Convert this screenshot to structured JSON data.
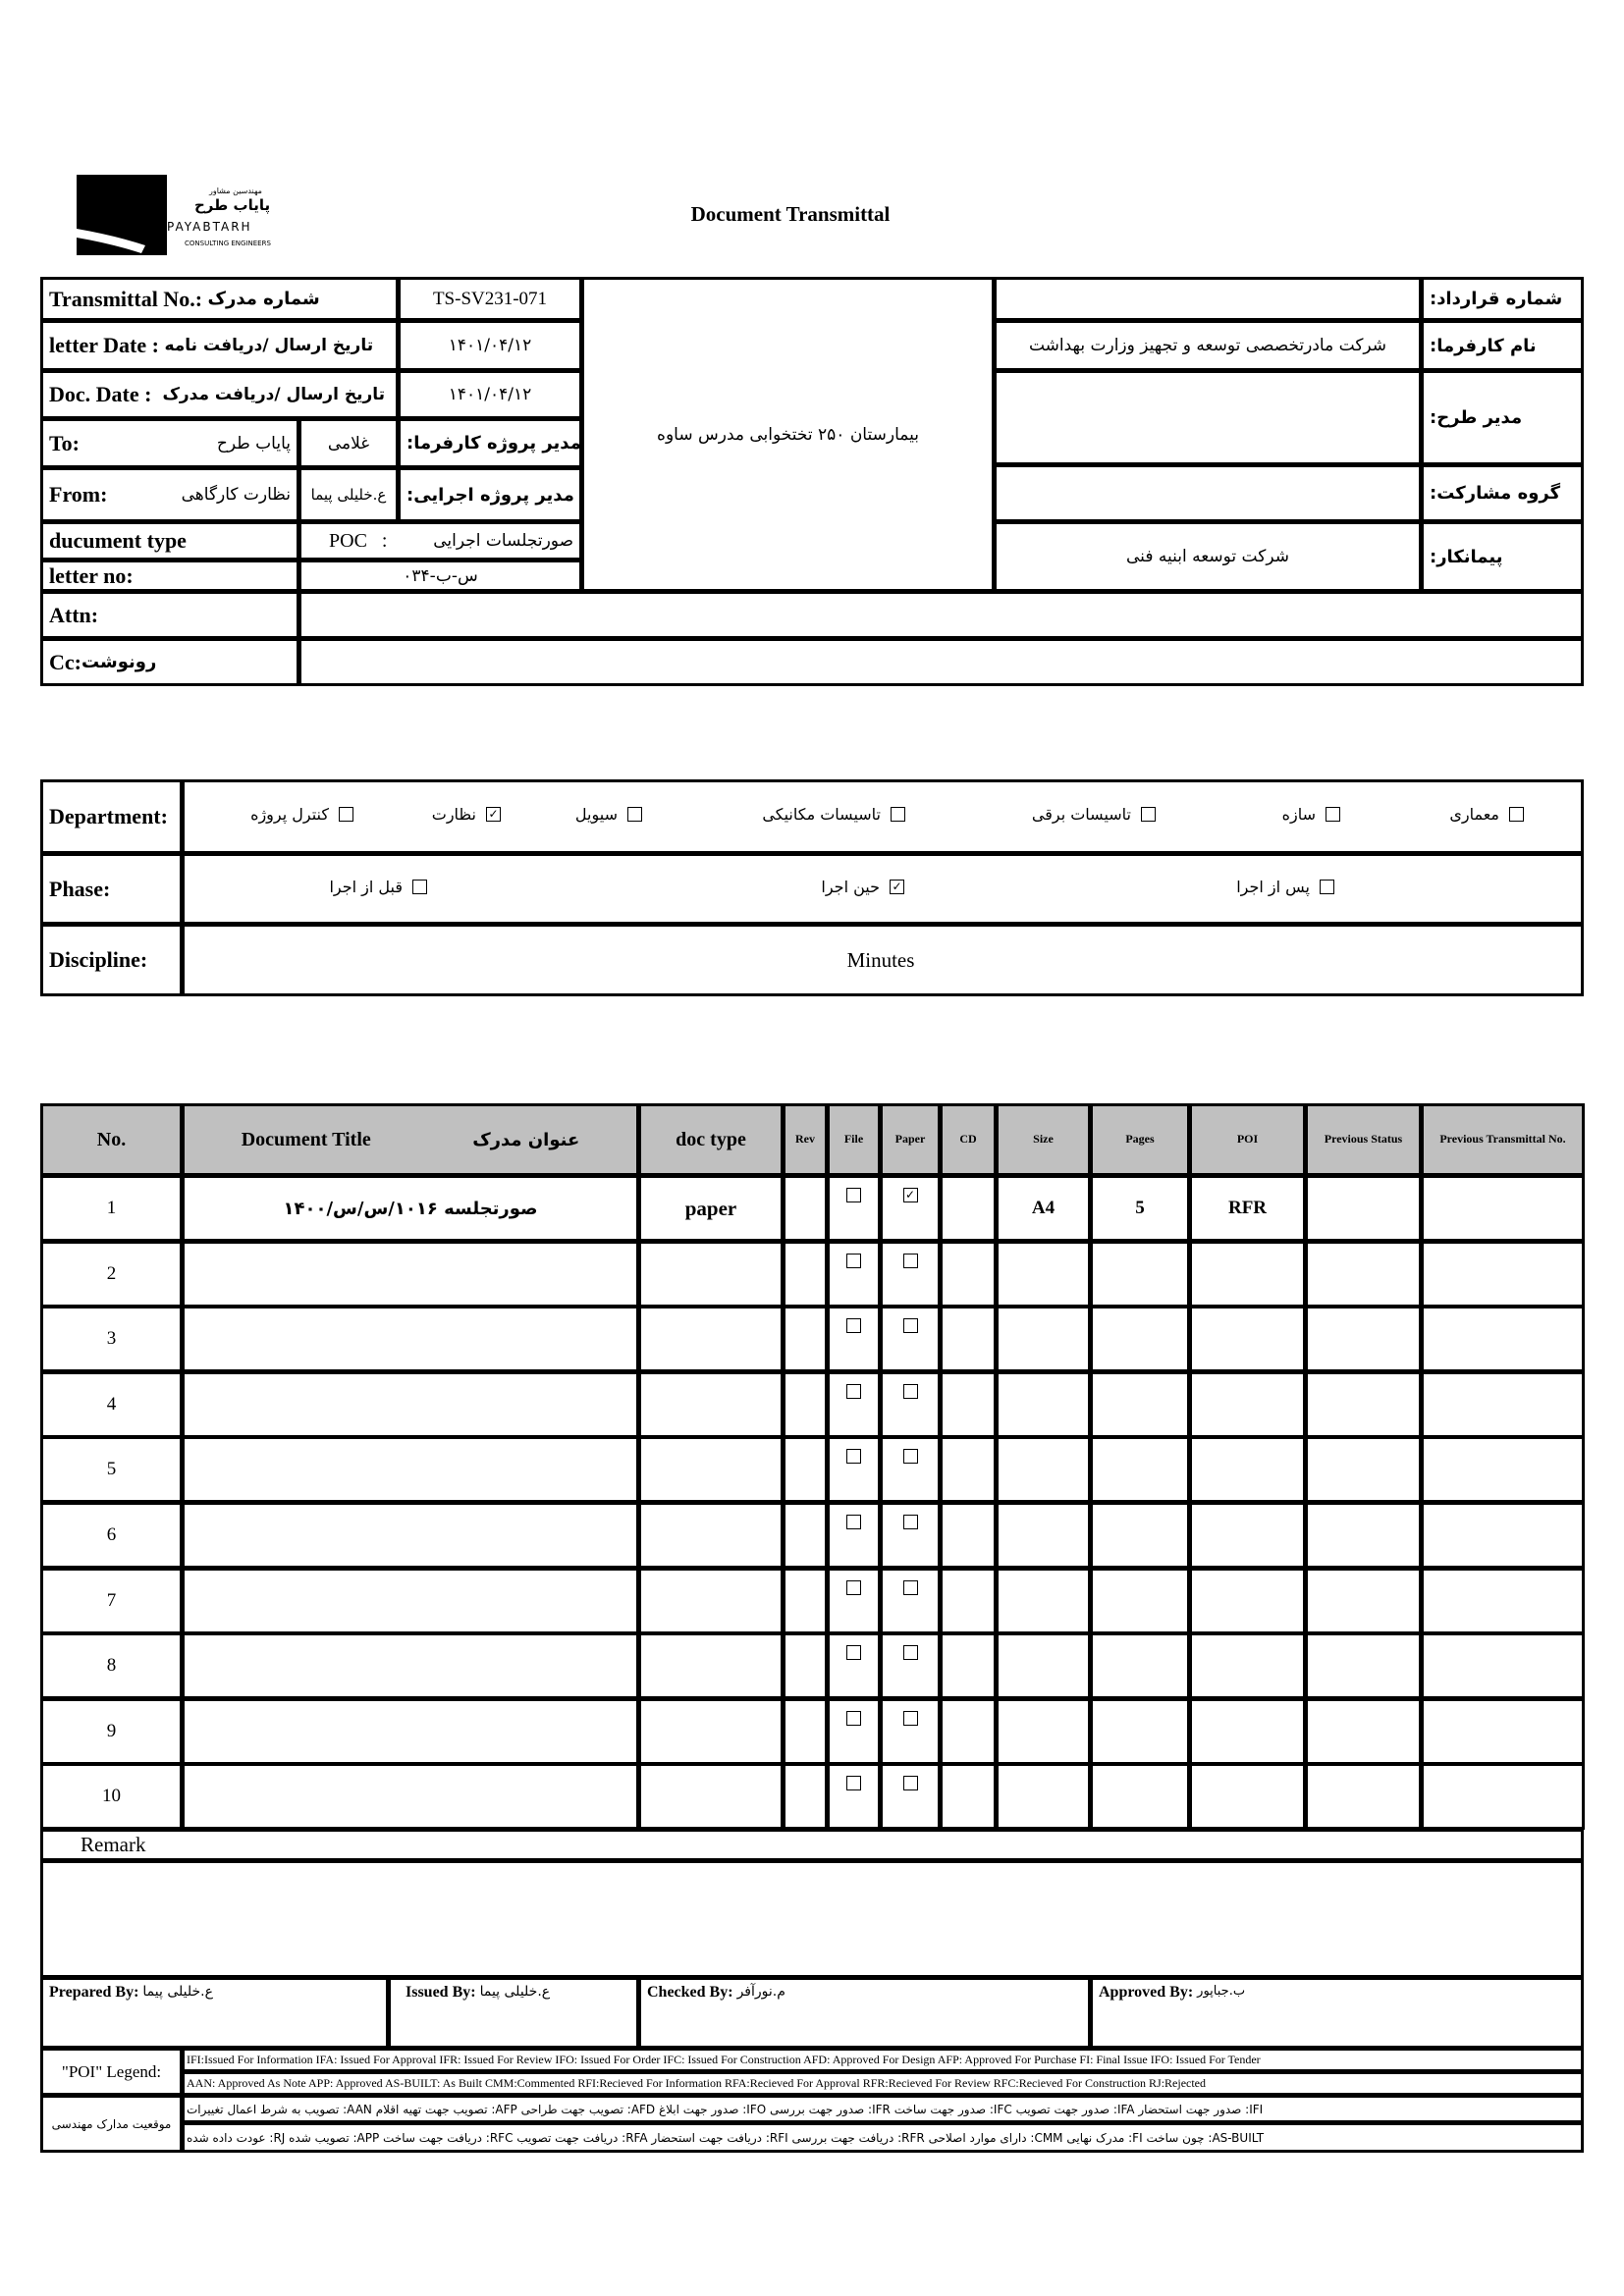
{
  "logo": {
    "fa_top": "مهندسین مشاور",
    "fa_name": "پایاب طرح",
    "en_name": "PAYABTARH",
    "en_sub": "CONSULTING ENGINEERS"
  },
  "title": "Document Transmittal",
  "header": {
    "transmittal_no_label": "Transmittal No.:",
    "transmittal_no_fa": "شماره مدرک",
    "transmittal_no": "TS-SV231-071",
    "letter_date_label": "letter Date :",
    "letter_date_fa": "تاریخ ارسال /دریافت نامه",
    "letter_date": "۱۴۰۱/۰۴/۱۲",
    "doc_date_label": "Doc. Date :",
    "doc_date_fa": "تاریخ ارسال /دریافت مدرک",
    "doc_date": "۱۴۰۱/۰۴/۱۲",
    "to_label": "To:",
    "to_value": "پایاب طرح",
    "to_person": "غلامی",
    "client_pm_label": "مدیر پروژه کارفرما:",
    "from_label": "From:",
    "from_value": "نظارت کارگاهی",
    "from_person": "ع.خلیلی پیما",
    "exec_pm_label": "مدیر پروژه اجرایی:",
    "doc_type_label": "ducument type",
    "doc_type_code": "POC   :",
    "doc_type_fa": "صورتجلسات اجرایی",
    "letter_no_label": "letter no:",
    "letter_no": "۰۳۴-س-ب",
    "attn_label": "Attn:",
    "attn_value": "",
    "cc_label": "Cc:",
    "cc_fa": "رونوشت",
    "cc_value": "",
    "project": "بیمارستان ۲۵۰ تختخوابی مدرس ساوه",
    "contract_no_label": "شماره قرارداد:",
    "contract_no": "",
    "client_label": "نام کارفرما:",
    "client": "شرکت مادرتخصصی توسعه و تجهیز وزارت بهداشت",
    "plan_manager_label": "مدیر طرح:",
    "plan_manager": "",
    "partnership_label": "گروه مشارکت:",
    "partnership": "",
    "contractor_label": "پیمانکار:",
    "contractor": "شرکت توسعه ابنیه فنی"
  },
  "department": {
    "label": "Department:",
    "items": [
      {
        "label": "کنترل پروژه",
        "checked": false
      },
      {
        "label": "نظارت",
        "checked": true
      },
      {
        "label": "سیویل",
        "checked": false
      },
      {
        "label": "تاسیسات مکانیکی",
        "checked": false
      },
      {
        "label": "تاسیسات برقی",
        "checked": false
      },
      {
        "label": "سازه",
        "checked": false
      },
      {
        "label": "معماری",
        "checked": false
      }
    ]
  },
  "phase": {
    "label": "Phase:",
    "items": [
      {
        "label": "قبل از اجرا",
        "checked": false
      },
      {
        "label": "حین اجرا",
        "checked": true
      },
      {
        "label": "پس از اجرا",
        "checked": false
      }
    ]
  },
  "discipline": {
    "label": "Discipline:",
    "value": "Minutes"
  },
  "table": {
    "headers": {
      "no": "No.",
      "title_en": "Document Title",
      "title_fa": "عنوان مدرک",
      "doc_type": "doc type",
      "rev": "Rev",
      "file": "File",
      "paper": "Paper",
      "cd": "CD",
      "size": "Size",
      "pages": "Pages",
      "poi": "POI",
      "prev_status": "Previous Status",
      "prev_transmittal": "Previous Transmittal No."
    },
    "rows": [
      {
        "no": "1",
        "title": "صورتجلسه ۱۰۱۶/س/س/۱۴۰۰",
        "doc_type": "paper",
        "rev": "",
        "file": false,
        "paper": true,
        "cd": "",
        "size": "A4",
        "pages": "5",
        "poi": "RFR",
        "prev_status": "",
        "prev_transmittal": ""
      },
      {
        "no": "2",
        "file": false,
        "paper": false
      },
      {
        "no": "3",
        "file": false,
        "paper": false
      },
      {
        "no": "4",
        "file": false,
        "paper": false
      },
      {
        "no": "5",
        "file": false,
        "paper": false
      },
      {
        "no": "6",
        "file": false,
        "paper": false
      },
      {
        "no": "7",
        "file": false,
        "paper": false
      },
      {
        "no": "8",
        "file": false,
        "paper": false
      },
      {
        "no": "9",
        "file": false,
        "paper": false
      },
      {
        "no": "10",
        "file": false,
        "paper": false
      }
    ]
  },
  "remark": {
    "label": "Remark",
    "value": ""
  },
  "signatures": {
    "prepared_label": "Prepared By:",
    "prepared": "ع.خلیلی پیما",
    "issued_label": "Issued By:",
    "issued": "ع.خلیلی پیما",
    "checked_label": "Checked By:",
    "checked": "م.نورآفر",
    "approved_label": "Approved By:",
    "approved": "ب.جباپور"
  },
  "legend": {
    "label": "\"POI\" Legend:",
    "line1": "IFI:Issued For Information  IFA: Issued For Approval  IFR: Issued For Review   IFO: Issued For Order  IFC: Issued For Construction AFD: Approved For Design AFP: Approved For Purchase  FI: Final Issue  IFO: Issued For Tender",
    "line2": "AAN: Approved As Note  APP: Approved  AS-BUILT: As Built CMM:Commented  RFI:Recieved For Information   RFA:Recieved For Approval   RFR:Recieved For Review  RFC:Recieved For Construction  RJ:Rejected",
    "fa_label": "موقعیت مدارک مهندسی",
    "fa_line1": "IFI: صدور جهت استحضار    IFA: صدور جهت تصویب    IFC: صدور جهت ساخت    IFR: صدور جهت بررسی    IFO: صدور جهت ابلاغ    AFD: تصویب جهت طراحی    AFP: تصویب جهت تهیه اقلام    AAN: تصویب به شرط اعمال تغییرات",
    "fa_line2": "AS-BUILT: چون ساخت    FI: مدرک نهایی    CMM: دارای موارد اصلاحی    RFR: دریافت جهت بررسی    RFI: دریافت جهت استحضار    RFA: دریافت جهت تصویب    RFC: دریافت جهت ساخت    APP: تصویب شده    RJ: عودت داده شده"
  }
}
